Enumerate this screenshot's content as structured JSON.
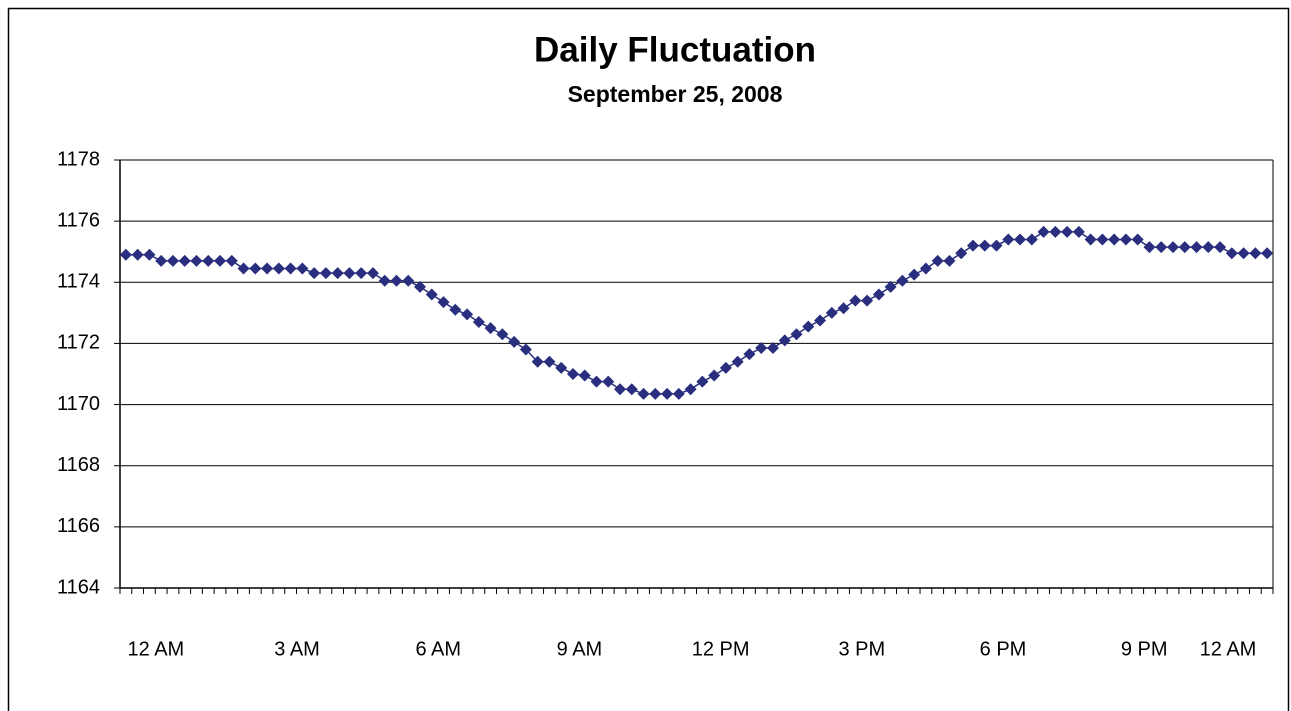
{
  "chart_data": {
    "type": "line",
    "title": "Daily Fluctuation",
    "subtitle": "September 25, 2008",
    "categories": [
      "12 AM",
      null,
      null,
      null,
      null,
      null,
      null,
      null,
      null,
      null,
      null,
      null,
      "3 AM",
      null,
      null,
      null,
      null,
      null,
      null,
      null,
      null,
      null,
      null,
      null,
      "6 AM",
      null,
      null,
      null,
      null,
      null,
      null,
      null,
      null,
      null,
      null,
      null,
      "9 AM",
      null,
      null,
      null,
      null,
      null,
      null,
      null,
      null,
      null,
      null,
      null,
      "12 PM",
      null,
      null,
      null,
      null,
      null,
      null,
      null,
      null,
      null,
      null,
      null,
      "3 PM",
      null,
      null,
      null,
      null,
      null,
      null,
      null,
      null,
      null,
      null,
      null,
      "6 PM",
      null,
      null,
      null,
      null,
      null,
      null,
      null,
      null,
      null,
      null,
      null,
      "9 PM",
      null,
      null,
      null,
      null,
      null,
      null,
      null,
      null,
      null,
      null,
      null,
      "12 AM",
      null
    ],
    "series": [
      {
        "color": "#2a2e7e",
        "values": [
          1174.9,
          1174.9,
          1174.9,
          1174.7,
          1174.7,
          1174.7,
          1174.7,
          1174.7,
          1174.7,
          1174.7,
          1174.45,
          1174.45,
          1174.45,
          1174.45,
          1174.45,
          1174.45,
          1174.3,
          1174.3,
          1174.3,
          1174.3,
          1174.3,
          1174.3,
          1174.05,
          1174.05,
          1174.05,
          1173.85,
          1173.6,
          1173.35,
          1173.1,
          1172.95,
          1172.7,
          1172.5,
          1172.3,
          1172.05,
          1171.8,
          1171.4,
          1171.4,
          1171.2,
          1171.0,
          1170.95,
          1170.75,
          1170.75,
          1170.5,
          1170.5,
          1170.35,
          1170.35,
          1170.35,
          1170.35,
          1170.5,
          1170.75,
          1170.95,
          1171.2,
          1171.4,
          1171.65,
          1171.85,
          1171.85,
          1172.1,
          1172.3,
          1172.55,
          1172.75,
          1173.0,
          1173.15,
          1173.4,
          1173.4,
          1173.6,
          1173.85,
          1174.05,
          1174.25,
          1174.45,
          1174.7,
          1174.7,
          1174.95,
          1175.2,
          1175.2,
          1175.2,
          1175.4,
          1175.4,
          1175.4,
          1175.65,
          1175.65,
          1175.65,
          1175.65,
          1175.4,
          1175.4,
          1175.4,
          1175.4,
          1175.4,
          1175.15,
          1175.15,
          1175.15,
          1175.15,
          1175.15,
          1175.15,
          1175.15,
          1174.95,
          1174.95,
          1174.95,
          1174.95
        ]
      }
    ],
    "ylim": [
      1164,
      1178
    ],
    "yticks": [
      1164,
      1166,
      1168,
      1170,
      1172,
      1174,
      1176,
      1178
    ],
    "grid": true
  }
}
